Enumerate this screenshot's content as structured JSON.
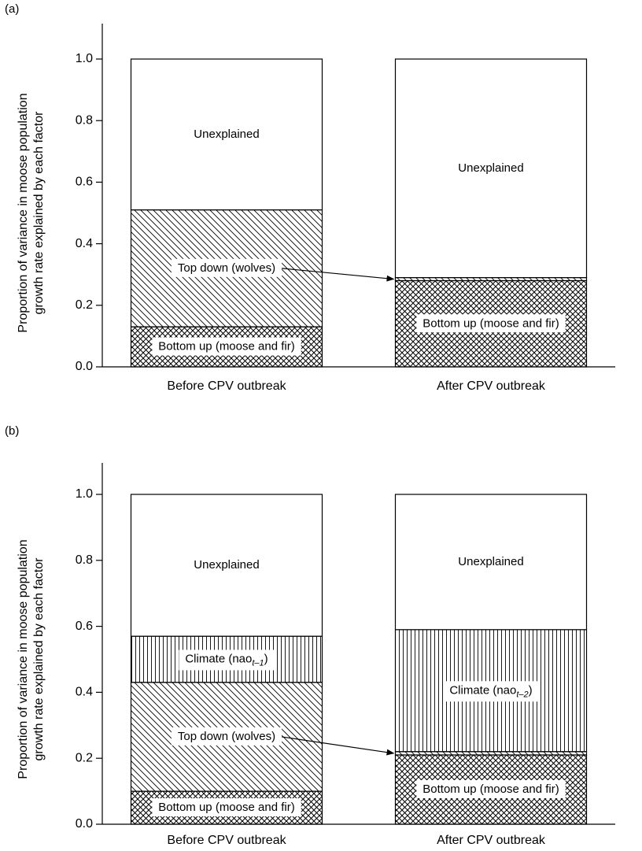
{
  "chart_data": [
    {
      "type": "stacked_bar",
      "panel_label": "(a)",
      "ylabel": [
        "Proportion of variance in moose population",
        "growth rate explained by each factor"
      ],
      "ylim": [
        0,
        1
      ],
      "yticks": [
        {
          "value": 0,
          "label": "0.0"
        },
        0.2,
        0.4,
        0.6,
        0.8,
        {
          "value": 1,
          "label": "1.0"
        }
      ],
      "categories": [
        "Before CPV outbreak",
        "After CPV outbreak"
      ],
      "series": [
        {
          "pattern": "crosshatch",
          "values": [
            0.13,
            0.28
          ],
          "labels": [
            "Bottom up (moose and fir)",
            "Bottom up (moose and fir)"
          ]
        },
        {
          "pattern": "diagonal",
          "values": [
            0.38,
            0.01
          ],
          "labels": [
            "Top down (wolves)",
            null
          ]
        },
        {
          "pattern": "none",
          "values": [
            0.49,
            0.71
          ],
          "labels": [
            "Unexplained",
            "Unexplained"
          ]
        }
      ]
    },
    {
      "type": "stacked_bar",
      "panel_label": "(b)",
      "ylabel": [
        "Proportion of variance in moose population",
        "growth rate explained by each factor"
      ],
      "ylim": [
        0,
        1
      ],
      "yticks": [
        {
          "value": 0,
          "label": "0.0"
        },
        0.2,
        0.4,
        0.6,
        0.8,
        {
          "value": 1,
          "label": "1.0"
        }
      ],
      "categories": [
        "Before CPV outbreak",
        "After CPV outbreak"
      ],
      "series": [
        {
          "pattern": "crosshatch",
          "values": [
            0.1,
            0.21
          ],
          "labels": [
            "Bottom up (moose and fir)",
            "Bottom up (moose and fir)"
          ]
        },
        {
          "pattern": "diagonal",
          "values": [
            0.33,
            0.01
          ],
          "labels": [
            "Top down (wolves)",
            null
          ]
        },
        {
          "pattern": "vertical",
          "values": [
            0.14,
            0.37
          ],
          "labels": [
            "Climate (nao",
            "Climate (nao"
          ],
          "label_subs": [
            "t–1",
            "t–2"
          ],
          "label_ends": [
            ")",
            ")"
          ]
        },
        {
          "pattern": "none",
          "values": [
            0.43,
            0.41
          ],
          "labels": [
            "Unexplained",
            "Unexplained"
          ]
        }
      ]
    }
  ]
}
